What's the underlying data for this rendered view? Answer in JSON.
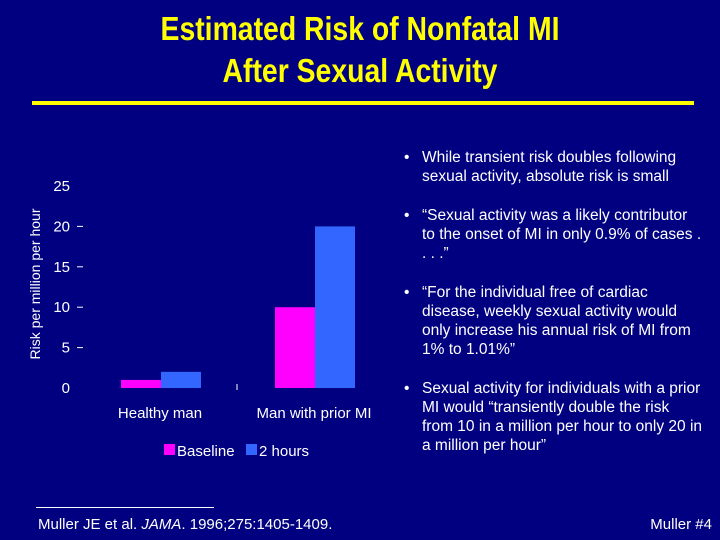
{
  "slide": {
    "title_line1": "Estimated Risk of Nonfatal MI",
    "title_line2": "After Sexual Activity",
    "bullets": [
      "While transient risk doubles following sexual activity, absolute risk is small",
      "“Sexual activity was a likely contributor to the onset of MI in only 0.9% of cases . . . .”",
      "“For the individual free of cardiac disease, weekly sexual activity would only increase his annual risk of MI from 1% to 1.01%”",
      "Sexual activity for individuals with a prior MI would “transiently double the risk from 10 in a million per hour to only 20 in a million per hour”"
    ],
    "citation_prefix": "Muller JE et al. ",
    "citation_journal": "JAMA",
    "citation_suffix": ". 1996;275:1405-1409.",
    "slide_number": "Muller #4"
  },
  "colors": {
    "background": "#000080",
    "title": "#FFFF00",
    "text": "#FFFFFF",
    "baseline": "#FF00FF",
    "two_hours": "#3366FF"
  },
  "chart_data": {
    "type": "bar",
    "categories": [
      "Healthy man",
      "Man with prior MI"
    ],
    "series": [
      {
        "name": "Baseline",
        "values": [
          1,
          10
        ]
      },
      {
        "name": "2 hours",
        "values": [
          2,
          20
        ]
      }
    ],
    "ylabel": "Risk per million per hour",
    "ylim": [
      0,
      25
    ],
    "yticks": [
      0,
      5,
      10,
      15,
      20,
      25
    ],
    "legend": "bottom"
  }
}
